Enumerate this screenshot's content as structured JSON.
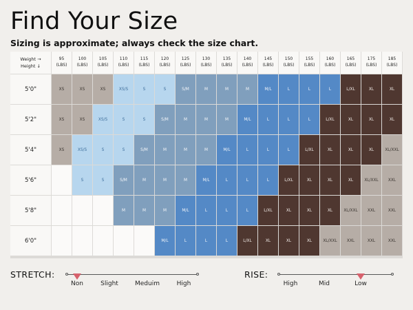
{
  "header": {
    "title": "Find Your Size",
    "subtitle": "Sizing is approximate; always check the size chart."
  },
  "table": {
    "corner_label": "Weight →\nHeight ↓",
    "weight_columns": [
      {
        "value": "95",
        "unit": "(LBS)"
      },
      {
        "value": "100",
        "unit": "(LBS)"
      },
      {
        "value": "105",
        "unit": "(LBS)"
      },
      {
        "value": "110",
        "unit": "(LBS)"
      },
      {
        "value": "115",
        "unit": "(LBS)"
      },
      {
        "value": "120",
        "unit": "(LBS)"
      },
      {
        "value": "125",
        "unit": "(LBS)"
      },
      {
        "value": "130",
        "unit": "(LBS)"
      },
      {
        "value": "135",
        "unit": "(LBS)"
      },
      {
        "value": "140",
        "unit": "(LBS)"
      },
      {
        "value": "145",
        "unit": "(LBS)"
      },
      {
        "value": "150",
        "unit": "(LBS)"
      },
      {
        "value": "155",
        "unit": "(LBS)"
      },
      {
        "value": "160",
        "unit": "(LBS)"
      },
      {
        "value": "165",
        "unit": "(LBS)"
      },
      {
        "value": "175",
        "unit": "(LBS)"
      },
      {
        "value": "185",
        "unit": "(LBS)"
      }
    ],
    "rows": [
      {
        "height": "5'0\"",
        "cells": [
          "XS",
          "XS",
          "XS",
          "XS/S",
          "S",
          "S",
          "S/M",
          "M",
          "M",
          "M",
          "M/L",
          "L",
          "L",
          "L",
          "L/XL",
          "XL",
          "XL"
        ]
      },
      {
        "height": "5'2\"",
        "cells": [
          "XS",
          "XS",
          "XS/S",
          "S",
          "S",
          "S/M",
          "M",
          "M",
          "M",
          "M/L",
          "L",
          "L",
          "L",
          "L/XL",
          "XL",
          "XL",
          "XL"
        ]
      },
      {
        "height": "5'4\"",
        "cells": [
          "XS",
          "XS/S",
          "S",
          "S",
          "S/M",
          "M",
          "M",
          "M",
          "M/L",
          "L",
          "L",
          "L",
          "L/XL",
          "XL",
          "XL",
          "XL",
          "XL/XXL"
        ]
      },
      {
        "height": "5'6\"",
        "cells": [
          "",
          "S",
          "S",
          "S/M",
          "M",
          "M",
          "M",
          "M/L",
          "L",
          "L",
          "L",
          "L/XL",
          "XL",
          "XL",
          "XL",
          "XL/XXL",
          "XXL"
        ]
      },
      {
        "height": "5'8\"",
        "cells": [
          "",
          "",
          "",
          "M",
          "M",
          "M",
          "M/L",
          "L",
          "L",
          "L",
          "L/XL",
          "XL",
          "XL",
          "XL",
          "XL/XXL",
          "XXL",
          "XXL"
        ]
      },
      {
        "height": "6'0\"",
        "cells": [
          "",
          "",
          "",
          "",
          "",
          "M/L",
          "L",
          "L",
          "L",
          "L/XL",
          "XL",
          "XL",
          "XL",
          "XL/XXL",
          "XXL",
          "XXL",
          "XXL"
        ]
      }
    ],
    "colors": {
      "XS": "#b6ada6",
      "XS/S": "#b7d6ee",
      "S": "#b7d6ee",
      "S/M": "#809fbd",
      "M": "#809fbd",
      "M/L": "#5489c6",
      "L": "#5489c6",
      "L/XL": "#4f3730",
      "XL": "#4f3730",
      "XL/XXL": "#b6ada6",
      "XXL": "#b6ada6",
      "empty": "#fbfaf9"
    },
    "text_colors": {
      "XS": "#3a3530",
      "XS/S": "#3f6f9c",
      "S": "#3f6f9c",
      "S/M": "#f4f6f9",
      "M": "#f4f6f9",
      "M/L": "#f4f6f9",
      "L": "#f4f6f9",
      "L/XL": "#f4efec",
      "XL": "#f4efec",
      "XL/XXL": "#3a3530",
      "XXL": "#3a3530"
    }
  },
  "stretch": {
    "label": "STRETCH:",
    "ticks": [
      "Non",
      "Slight",
      "Meduim",
      "High"
    ],
    "selected": "Non"
  },
  "rise": {
    "label": "RISE:",
    "ticks": [
      "High",
      "Mid",
      "Low"
    ],
    "selected": "Low"
  },
  "marker_color": "#d6616c"
}
